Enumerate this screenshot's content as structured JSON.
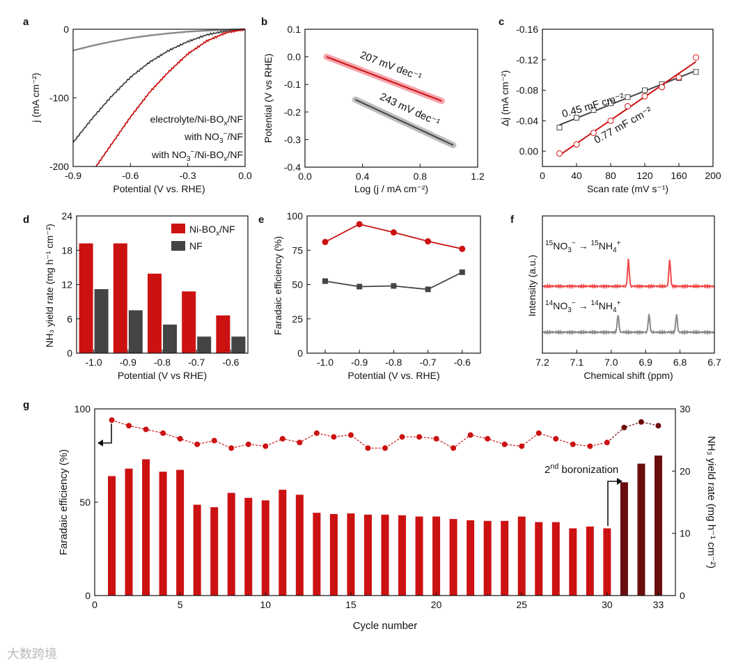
{
  "watermark": "大数跨境",
  "colors": {
    "red": "#cc1111",
    "gray": "#444444",
    "lightgray": "#888888",
    "darkred": "#6b0d0d",
    "pinkfit": "#f0a0a8"
  },
  "chart_data": [
    {
      "panel": "a",
      "type": "line",
      "xlabel": "Potential (V vs. RHE)",
      "ylabel": "j (mA cm⁻²)",
      "xlim": [
        -0.9,
        0.0
      ],
      "ylim": [
        -200,
        0
      ],
      "xticks": [
        "-0.9",
        "-0.6",
        "-0.3",
        "0.0"
      ],
      "yticks": [
        "-200",
        "-100",
        "0"
      ],
      "series": [
        {
          "name": "electrolyte/Ni-BOx/NF",
          "color": "#888888",
          "x": [
            -0.9,
            -0.8,
            -0.7,
            -0.6,
            -0.5,
            -0.4,
            -0.3,
            -0.2,
            -0.1,
            0.0
          ],
          "y": [
            -31,
            -24,
            -18,
            -13,
            -9,
            -6,
            -3.5,
            -2,
            -0.8,
            0
          ]
        },
        {
          "name": "with NO3⁻/NF",
          "color": "#444444",
          "x": [
            -0.9,
            -0.8,
            -0.7,
            -0.6,
            -0.5,
            -0.4,
            -0.3,
            -0.2,
            -0.1,
            0.0
          ],
          "y": [
            -165,
            -130,
            -98,
            -70,
            -48,
            -31,
            -18,
            -8,
            -2.5,
            0
          ]
        },
        {
          "name": "with NO3⁻/Ni-BOx/NF",
          "color": "#cc1111",
          "x": [
            -0.78,
            -0.7,
            -0.6,
            -0.5,
            -0.4,
            -0.3,
            -0.2,
            -0.1,
            0.0
          ],
          "y": [
            -200,
            -168,
            -128,
            -92,
            -62,
            -36,
            -17,
            -5,
            0
          ]
        }
      ],
      "legend": [
        {
          "pre": "electrolyte/Ni-BO",
          "sub": "x",
          "post": "/NF",
          "color": "#888888"
        },
        {
          "pre": "with NO",
          "sub": "3",
          "sup": "−",
          "post": "/NF",
          "color": "#444444"
        },
        {
          "pre": "with NO",
          "sub": "3",
          "sup": "−",
          "post": "/Ni-BO",
          "sub2": "x",
          "post2": "/NF",
          "color": "#cc1111"
        }
      ]
    },
    {
      "panel": "b",
      "type": "line",
      "xlabel": "Log (j / mA cm⁻²)",
      "ylabel": "Potential (V vs RHE)",
      "xlim": [
        0.0,
        1.2
      ],
      "ylim": [
        -0.4,
        0.1
      ],
      "xticks": [
        "0.0",
        "0.4",
        "0.8",
        "1.2"
      ],
      "yticks": [
        "-0.4",
        "-0.3",
        "-0.2",
        "-0.1",
        "0.0",
        "0.1"
      ],
      "series": [
        {
          "name": "Ni-BOx/NF",
          "color": "#cc1111",
          "x": [
            0.15,
            0.95
          ],
          "y": [
            0.0,
            -0.16
          ],
          "label": "207 mV dec⁻¹"
        },
        {
          "name": "NF",
          "color": "#444444",
          "x": [
            0.35,
            1.03
          ],
          "y": [
            -0.155,
            -0.32
          ],
          "label": "243 mV dec⁻¹"
        }
      ]
    },
    {
      "panel": "c",
      "type": "scatter",
      "xlabel": "Scan rate (mV s⁻¹)",
      "ylabel": "Δj (mA cm⁻²)",
      "xlim": [
        0,
        200
      ],
      "ylim": [
        0.02,
        -0.16
      ],
      "xticks": [
        "0",
        "40",
        "80",
        "120",
        "160",
        "200"
      ],
      "yticks": [
        "-0.16",
        "-0.12",
        "-0.08",
        "-0.04",
        "0.00"
      ],
      "series": [
        {
          "name": "NF",
          "color": "#444444",
          "marker": "square",
          "x": [
            20,
            40,
            60,
            80,
            100,
            120,
            140,
            160,
            180
          ],
          "y": [
            -0.031,
            -0.044,
            -0.054,
            -0.063,
            -0.071,
            -0.08,
            -0.088,
            -0.096,
            -0.104
          ],
          "label": "0.45 mF cm⁻²"
        },
        {
          "name": "Ni-BOx/NF",
          "color": "#cc1111",
          "marker": "circle",
          "x": [
            20,
            40,
            60,
            80,
            100,
            120,
            140,
            160,
            180
          ],
          "y": [
            0.003,
            -0.009,
            -0.024,
            -0.04,
            -0.059,
            -0.072,
            -0.084,
            -0.097,
            -0.123
          ],
          "label": "0.77 mF cm⁻²"
        }
      ]
    },
    {
      "panel": "d",
      "type": "bar",
      "xlabel": "Potential (V vs RHE)",
      "ylabel": "NH₃ yield rate (mg h⁻¹ cm⁻²)",
      "ylim": [
        0,
        24
      ],
      "categories": [
        "-1.0",
        "-0.9",
        "-0.8",
        "-0.7",
        "-0.6"
      ],
      "yticks": [
        "0",
        "6",
        "12",
        "18",
        "24"
      ],
      "series": [
        {
          "name": "Ni-BOx/NF",
          "color": "#cc1111",
          "values": [
            19.2,
            19.2,
            13.9,
            10.8,
            6.6
          ]
        },
        {
          "name": "NF",
          "color": "#444444",
          "values": [
            11.2,
            7.5,
            5.0,
            2.9,
            2.9
          ]
        }
      ],
      "legend": [
        {
          "pre": "Ni-BO",
          "sub": "x",
          "post": "/NF",
          "color": "#cc1111"
        },
        {
          "pre": "NF",
          "color": "#444444"
        }
      ]
    },
    {
      "panel": "e",
      "type": "line",
      "xlabel": "Potential (V vs. RHE)",
      "ylabel": "Faradaic efficiency (%)",
      "ylim": [
        0,
        100
      ],
      "categories": [
        "-1.0",
        "-0.9",
        "-0.8",
        "-0.7",
        "-0.6"
      ],
      "yticks": [
        "0",
        "25",
        "50",
        "75",
        "100"
      ],
      "series": [
        {
          "name": "Ni-BOx/NF",
          "color": "#cc1111",
          "marker": "circle",
          "values": [
            81,
            94,
            88,
            81.5,
            76
          ]
        },
        {
          "name": "NF",
          "color": "#444444",
          "marker": "square",
          "values": [
            52.5,
            48.5,
            49,
            46.5,
            59
          ]
        }
      ]
    },
    {
      "panel": "f",
      "type": "line",
      "xlabel": "Chemical shift (ppm)",
      "ylabel": "Intensity (a.u.)",
      "xlim": [
        7.2,
        6.7
      ],
      "xticks": [
        "7.2",
        "7.1",
        "7.0",
        "6.9",
        "6.8",
        "6.7"
      ],
      "series": [
        {
          "name": "15NO3⁻ → 15NH4⁺",
          "color": "#f04a4a",
          "peaks": [
            6.95,
            6.83
          ]
        },
        {
          "name": "14NO3⁻ → 14NH4⁺",
          "color": "#888888",
          "peaks": [
            6.98,
            6.89,
            6.81
          ]
        }
      ],
      "labels": [
        {
          "pre": "15",
          "a": "NO",
          "b": "3",
          "c": "−",
          "arrow": " → ",
          "pre2": "15",
          "d": "NH",
          "e": "4",
          "f": "+",
          "color": "#e03030"
        },
        {
          "pre": "14",
          "a": "NO",
          "b": "3",
          "c": "−",
          "arrow": " → ",
          "pre2": "14",
          "d": "NH",
          "e": "4",
          "f": "+",
          "color": "#777777"
        }
      ]
    },
    {
      "panel": "g",
      "type": "bar",
      "xlabel": "Cycle number",
      "ylabel": "Faradaic efficiency (%)",
      "ylabel_right": "NH₃ yield rate (mg h⁻¹ cm⁻²)",
      "xlim": [
        0,
        34
      ],
      "ylim": [
        0,
        100
      ],
      "ylim_right": [
        0,
        30
      ],
      "xticks": [
        "0",
        "5",
        "10",
        "15",
        "20",
        "25",
        "30",
        "33"
      ],
      "yticks": [
        "0",
        "50",
        "100"
      ],
      "yticks_right": [
        "0",
        "10",
        "20",
        "30"
      ],
      "annotation": {
        "pre": "2",
        "sup": "nd",
        "post": " boronization"
      },
      "series": [
        {
          "name": "NH3 yield rate",
          "axis": "right",
          "color": "#cc1111",
          "color_after": "#6b0d0d",
          "x": [
            1,
            2,
            3,
            4,
            5,
            6,
            7,
            8,
            9,
            10,
            11,
            12,
            13,
            14,
            15,
            16,
            17,
            18,
            19,
            20,
            21,
            22,
            23,
            24,
            25,
            26,
            27,
            28,
            29,
            30,
            31,
            32,
            33
          ],
          "values": [
            19.2,
            20.4,
            21.9,
            19.9,
            20.2,
            14.6,
            14.2,
            16.5,
            15.7,
            15.3,
            17.0,
            16.2,
            13.3,
            13.1,
            13.2,
            13.0,
            13.0,
            12.9,
            12.7,
            12.7,
            12.3,
            12.1,
            12.0,
            12.0,
            12.7,
            11.8,
            11.8,
            10.8,
            11.1,
            10.8,
            18.2,
            21.2,
            22.5
          ]
        },
        {
          "name": "Faradaic efficiency",
          "axis": "left",
          "color": "#cc1111",
          "color_after": "#6b0d0d",
          "x": [
            1,
            2,
            3,
            4,
            5,
            6,
            7,
            8,
            9,
            10,
            11,
            12,
            13,
            14,
            15,
            16,
            17,
            18,
            19,
            20,
            21,
            22,
            23,
            24,
            25,
            26,
            27,
            28,
            29,
            30,
            31,
            32,
            33
          ],
          "values": [
            94,
            91,
            89,
            87,
            84,
            81,
            83,
            79,
            81,
            80,
            84,
            82,
            87,
            85,
            86,
            79,
            79,
            85,
            85,
            84,
            79,
            86,
            84,
            81,
            80,
            87,
            84,
            81,
            80,
            82,
            90,
            93,
            91
          ]
        }
      ]
    }
  ]
}
